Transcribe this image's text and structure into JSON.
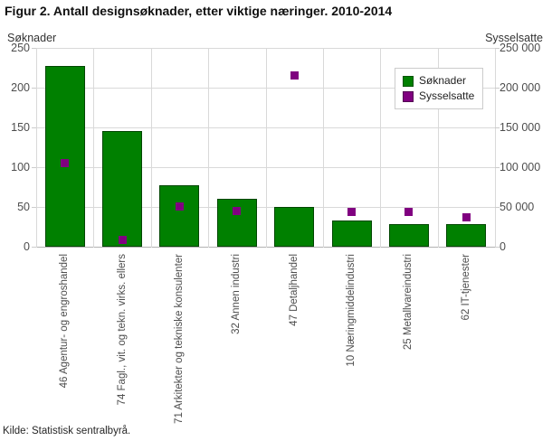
{
  "title": "Figur 2. Antall designsøknader, etter viktige næringer. 2010-2014",
  "source": "Kilde: Statistisk sentralbyrå.",
  "colors": {
    "bar": "#008000",
    "point": "#800080",
    "grid": "#d9d9d9",
    "axis_line": "#b3b3b3",
    "tick_text": "#4d4d4d",
    "title_text": "#111111"
  },
  "chart_data": {
    "type": "bar",
    "title": "Figur 2. Antall designsøknader, etter viktige næringer. 2010-2014",
    "categories": [
      "46 Agentur- og engroshandel",
      "74 Fagl., vit. og tekn. virks. ellers",
      "71 Arkitekter og tekniske konsulenter",
      "32 Annen industri",
      "47 Detaljhandel",
      "10 Næringmiddelindustri",
      "25 Metallvareindustri",
      "62 IT-tjenester"
    ],
    "series": [
      {
        "name": "Søknader",
        "type": "bar",
        "axis": "left",
        "color": "#008000",
        "values": [
          227,
          145,
          77,
          60,
          50,
          33,
          28,
          28
        ]
      },
      {
        "name": "Sysselsatte",
        "type": "scatter",
        "axis": "right",
        "color": "#800080",
        "values": [
          105000,
          8000,
          51000,
          45000,
          215000,
          44000,
          44000,
          37000
        ]
      }
    ],
    "left_axis": {
      "label": "Søknader",
      "min": 0,
      "max": 250,
      "tick_step": 50,
      "ticks": [
        "0",
        "50",
        "100",
        "150",
        "200",
        "250"
      ]
    },
    "right_axis": {
      "label": "Sysselsatte",
      "min": 0,
      "max": 250000,
      "tick_step": 50000,
      "ticks": [
        "0",
        "50 000",
        "100 000",
        "150 000",
        "200 000",
        "250 000"
      ]
    },
    "grid": true,
    "legend": {
      "position": "top-right-inside",
      "entries": [
        "Søknader",
        "Sysselsatte"
      ]
    }
  }
}
